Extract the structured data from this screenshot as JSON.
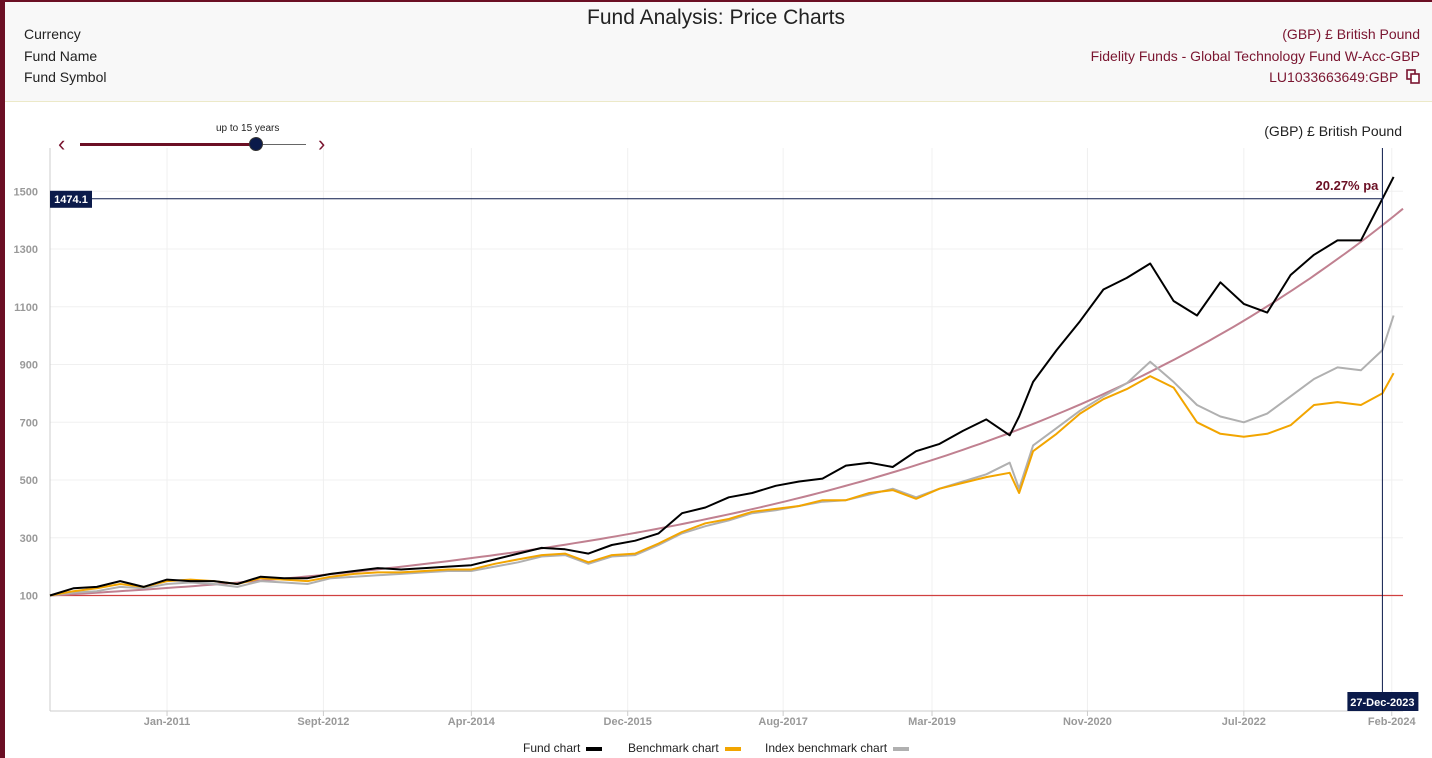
{
  "page": {
    "title": "Fund Analysis: Price Charts"
  },
  "info": {
    "currency_label": "Currency",
    "currency_value": "(GBP) £ British Pound",
    "fund_name_label": "Fund Name",
    "fund_name_value": "Fidelity Funds - Global Technology Fund W-Acc-GBP",
    "fund_symbol_label": "Fund Symbol",
    "fund_symbol_value": "LU1033663649:GBP",
    "copy_icon": "copy-icon"
  },
  "controls": {
    "period_label": "up to 15 years",
    "period_fraction": 0.78,
    "prev_icon": "chevron-left-icon",
    "next_icon": "chevron-right-icon"
  },
  "colors": {
    "brand": "#6b0f24",
    "fund": "#000000",
    "benchmark": "#f2a500",
    "index": "#b0b0b0",
    "trend": "#c08090",
    "baseline": "#d04040",
    "marker": "#0b1a4a"
  },
  "chart_data": {
    "type": "line",
    "currency_label": "(GBP) £ British Pound",
    "x_range": [
      2009.75,
      2024.2
    ],
    "ylim": [
      -300,
      1650
    ],
    "y_ticks": [
      100,
      300,
      500,
      700,
      900,
      1100,
      1300,
      1500
    ],
    "x_ticks": [
      {
        "label": "Jan-2011",
        "x": 2011.0
      },
      {
        "label": "Sept-2012",
        "x": 2012.67
      },
      {
        "label": "Apr-2014",
        "x": 2014.25
      },
      {
        "label": "Dec-2015",
        "x": 2015.92
      },
      {
        "label": "Aug-2017",
        "x": 2017.58
      },
      {
        "label": "Mar-2019",
        "x": 2019.17
      },
      {
        "label": "Nov-2020",
        "x": 2020.83
      },
      {
        "label": "Jul-2022",
        "x": 2022.5
      },
      {
        "label": "Feb-2024",
        "x": 2024.08
      }
    ],
    "baseline_value": 100,
    "growth_annotation": "20.27% pa",
    "growth_rate": 0.2027,
    "crosshair_value_label": "1474.1",
    "crosshair_value": 1474.1,
    "crosshair_date_label": "27-Dec-2023",
    "crosshair_x": 2023.98,
    "legend": [
      {
        "name": "Fund chart",
        "color": "#000000"
      },
      {
        "name": "Benchmark chart",
        "color": "#f2a500"
      },
      {
        "name": "Index benchmark chart",
        "color": "#b0b0b0"
      }
    ],
    "series": [
      {
        "name": "Fund chart",
        "color": "#000000",
        "x": [
          2009.75,
          2010.0,
          2010.25,
          2010.5,
          2010.75,
          2011.0,
          2011.25,
          2011.5,
          2011.75,
          2012.0,
          2012.25,
          2012.5,
          2012.75,
          2013.0,
          2013.25,
          2013.5,
          2013.75,
          2014.0,
          2014.25,
          2014.5,
          2014.75,
          2015.0,
          2015.25,
          2015.5,
          2015.75,
          2016.0,
          2016.25,
          2016.5,
          2016.75,
          2017.0,
          2017.25,
          2017.5,
          2017.75,
          2018.0,
          2018.25,
          2018.5,
          2018.75,
          2019.0,
          2019.25,
          2019.5,
          2019.75,
          2020.0,
          2020.1,
          2020.25,
          2020.5,
          2020.75,
          2021.0,
          2021.25,
          2021.5,
          2021.75,
          2022.0,
          2022.25,
          2022.5,
          2022.75,
          2023.0,
          2023.25,
          2023.5,
          2023.75,
          2023.98,
          2024.1
        ],
        "values": [
          100,
          125,
          130,
          150,
          130,
          155,
          150,
          150,
          140,
          165,
          160,
          160,
          175,
          185,
          195,
          190,
          195,
          200,
          205,
          225,
          245,
          265,
          260,
          245,
          275,
          290,
          315,
          385,
          405,
          440,
          455,
          480,
          495,
          505,
          550,
          560,
          545,
          600,
          625,
          670,
          710,
          655,
          720,
          840,
          950,
          1050,
          1160,
          1200,
          1250,
          1120,
          1070,
          1185,
          1110,
          1080,
          1210,
          1280,
          1330,
          1330,
          1474,
          1550
        ]
      },
      {
        "name": "Benchmark chart",
        "color": "#f2a500",
        "x": [
          2009.75,
          2010.0,
          2010.25,
          2010.5,
          2010.75,
          2011.0,
          2011.25,
          2011.5,
          2011.75,
          2012.0,
          2012.25,
          2012.5,
          2012.75,
          2013.0,
          2013.25,
          2013.5,
          2013.75,
          2014.0,
          2014.25,
          2014.5,
          2014.75,
          2015.0,
          2015.25,
          2015.5,
          2015.75,
          2016.0,
          2016.25,
          2016.5,
          2016.75,
          2017.0,
          2017.25,
          2017.5,
          2017.75,
          2018.0,
          2018.25,
          2018.5,
          2018.75,
          2019.0,
          2019.25,
          2019.5,
          2019.75,
          2020.0,
          2020.1,
          2020.25,
          2020.5,
          2020.75,
          2021.0,
          2021.25,
          2021.5,
          2021.75,
          2022.0,
          2022.25,
          2022.5,
          2022.75,
          2023.0,
          2023.25,
          2023.5,
          2023.75,
          2023.98,
          2024.1
        ],
        "values": [
          100,
          115,
          125,
          140,
          130,
          150,
          155,
          150,
          140,
          160,
          155,
          150,
          165,
          175,
          180,
          180,
          185,
          190,
          190,
          210,
          225,
          240,
          245,
          215,
          240,
          245,
          280,
          320,
          350,
          365,
          390,
          400,
          410,
          430,
          430,
          455,
          465,
          435,
          470,
          490,
          510,
          525,
          455,
          600,
          660,
          730,
          780,
          815,
          860,
          820,
          700,
          660,
          650,
          660,
          690,
          760,
          770,
          760,
          800,
          870
        ]
      },
      {
        "name": "Index benchmark chart",
        "color": "#b0b0b0",
        "x": [
          2009.75,
          2010.0,
          2010.25,
          2010.5,
          2010.75,
          2011.0,
          2011.25,
          2011.5,
          2011.75,
          2012.0,
          2012.25,
          2012.5,
          2012.75,
          2013.0,
          2013.25,
          2013.5,
          2013.75,
          2014.0,
          2014.25,
          2014.5,
          2014.75,
          2015.0,
          2015.25,
          2015.5,
          2015.75,
          2016.0,
          2016.25,
          2016.5,
          2016.75,
          2017.0,
          2017.25,
          2017.5,
          2017.75,
          2018.0,
          2018.25,
          2018.5,
          2018.75,
          2019.0,
          2019.25,
          2019.5,
          2019.75,
          2020.0,
          2020.1,
          2020.25,
          2020.5,
          2020.75,
          2021.0,
          2021.25,
          2021.5,
          2021.75,
          2022.0,
          2022.25,
          2022.5,
          2022.75,
          2023.0,
          2023.25,
          2023.5,
          2023.75,
          2023.98,
          2024.1
        ],
        "values": [
          100,
          110,
          115,
          130,
          125,
          140,
          145,
          140,
          130,
          150,
          145,
          140,
          160,
          165,
          170,
          175,
          180,
          185,
          185,
          200,
          215,
          235,
          240,
          210,
          235,
          240,
          275,
          315,
          340,
          360,
          385,
          395,
          410,
          425,
          430,
          450,
          470,
          440,
          470,
          495,
          520,
          560,
          470,
          620,
          680,
          740,
          790,
          835,
          910,
          840,
          760,
          720,
          700,
          730,
          790,
          850,
          890,
          880,
          950,
          1070
        ]
      }
    ]
  }
}
